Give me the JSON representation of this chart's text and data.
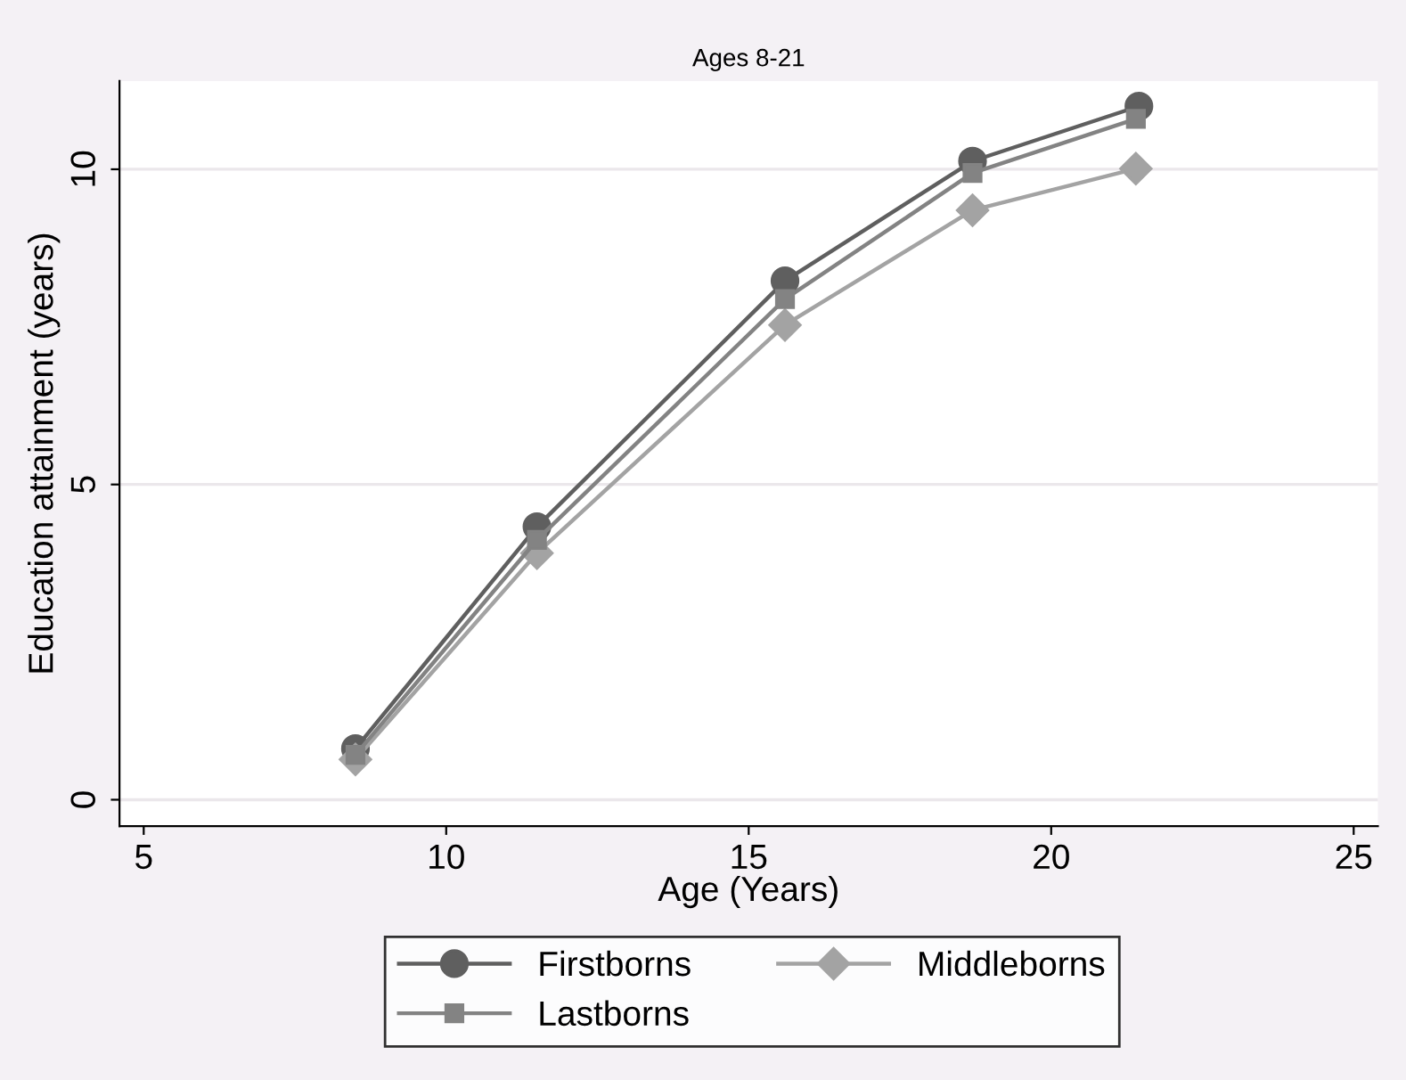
{
  "chart_data": {
    "type": "line",
    "title": "Ages 8-21",
    "xlabel": "Age (Years)",
    "ylabel": "Education attainment (years)",
    "xlim": [
      4.6,
      25.4
    ],
    "xticks": [
      5,
      10,
      15,
      20,
      25
    ],
    "ylim": [
      -0.42,
      11.4
    ],
    "yticks": [
      0,
      5,
      10
    ],
    "grid": "y",
    "legend": "bottom",
    "line_style": "solid",
    "series": [
      {
        "name": "Firstborns",
        "color": "#5f5f5f",
        "marker": "circle",
        "x": [
          8.5,
          11.5,
          15.6,
          18.7,
          21.45
        ],
        "values": [
          0.81,
          4.33,
          8.23,
          10.13,
          11.0
        ]
      },
      {
        "name": "Middleborns",
        "color": "#a3a3a3",
        "marker": "diamond",
        "x": [
          8.5,
          11.5,
          15.6,
          18.7,
          21.4
        ],
        "values": [
          0.64,
          3.91,
          7.53,
          9.35,
          10.01
        ]
      },
      {
        "name": "Lastborns",
        "color": "#838383",
        "marker": "square",
        "x": [
          8.5,
          11.5,
          15.6,
          18.7,
          21.4
        ],
        "values": [
          0.71,
          4.12,
          7.94,
          9.94,
          10.8
        ]
      }
    ]
  }
}
